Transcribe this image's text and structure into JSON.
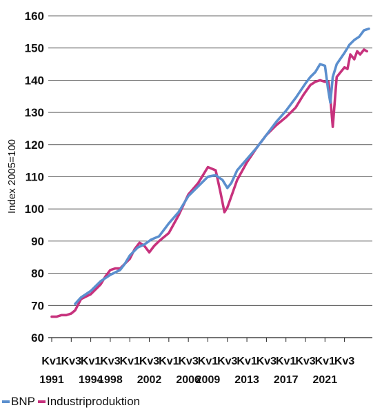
{
  "chart_data": {
    "type": "line",
    "xlabel": "",
    "ylabel": "Index 2005=100",
    "ylim": [
      60,
      160
    ],
    "y_ticks": [
      60,
      70,
      80,
      90,
      100,
      110,
      120,
      130,
      140,
      150,
      160
    ],
    "x_start": 1991.0,
    "x_end": 2023.5,
    "x_ticks": [
      {
        "quarter": "Kv1",
        "year": "1991",
        "x": 1991.0
      },
      {
        "quarter": "Kv3",
        "year": "",
        "x": 1993.0
      },
      {
        "quarter": "Kv1",
        "year": "1994",
        "x": 1995.0
      },
      {
        "quarter": "Kv3",
        "year": "1998",
        "x": 1997.0
      },
      {
        "quarter": "Kv1",
        "year": "",
        "x": 1999.0
      },
      {
        "quarter": "Kv3",
        "year": "2002",
        "x": 2001.0
      },
      {
        "quarter": "Kv1",
        "year": "",
        "x": 2003.0
      },
      {
        "quarter": "Kv3",
        "year": "2006",
        "x": 2005.0
      },
      {
        "quarter": "Kv1",
        "year": "2009",
        "x": 2007.0
      },
      {
        "quarter": "Kv3",
        "year": "",
        "x": 2009.0
      },
      {
        "quarter": "Kv1",
        "year": "2013",
        "x": 2011.0
      },
      {
        "quarter": "Kv3",
        "year": "",
        "x": 2013.0
      },
      {
        "quarter": "Kv1",
        "year": "2017",
        "x": 2015.0
      },
      {
        "quarter": "Kv3",
        "year": "",
        "x": 2017.0
      },
      {
        "quarter": "Kv1",
        "year": "2021",
        "x": 2019.0
      },
      {
        "quarter": "Kv3",
        "year": "",
        "x": 2021.0
      }
    ],
    "grid": "horizontal",
    "legend_position": "bottom-left",
    "series": [
      {
        "name": "BNP",
        "color": "#5b8fce",
        "x": [
          1993.4,
          1994.0,
          1995.0,
          1996.0,
          1997.0,
          1998.0,
          1998.5,
          1999.0,
          1999.8,
          2000.5,
          2001.2,
          2002.0,
          2003.0,
          2004.0,
          2005.0,
          2006.0,
          2007.0,
          2007.8,
          2008.5,
          2009.0,
          2009.4,
          2010.0,
          2011.0,
          2012.0,
          2013.0,
          2014.0,
          2015.0,
          2016.0,
          2017.0,
          2017.5,
          2018.0,
          2018.5,
          2019.0,
          2019.3,
          2019.55,
          2019.8,
          2020.2,
          2021.0,
          2021.5,
          2022.0,
          2022.5,
          2023.0,
          2023.5
        ],
        "values": [
          70.5,
          72.5,
          74.5,
          77.5,
          79.5,
          81.0,
          83.0,
          85.5,
          88.0,
          89.0,
          90.5,
          91.5,
          95.5,
          99.0,
          104.0,
          107.0,
          110.0,
          110.5,
          109.0,
          106.5,
          108.0,
          112.0,
          115.5,
          119.0,
          123.0,
          127.0,
          130.5,
          134.5,
          139.0,
          141.0,
          142.5,
          145.0,
          144.5,
          137.5,
          133.0,
          141.0,
          145.0,
          148.5,
          151.0,
          152.5,
          153.5,
          155.5,
          156.0
        ]
      },
      {
        "name": "Industriproduktion",
        "color": "#c7327d",
        "x": [
          1991.0,
          1991.5,
          1992.0,
          1992.5,
          1993.0,
          1993.4,
          1994.0,
          1995.0,
          1996.0,
          1996.5,
          1997.0,
          1997.5,
          1998.0,
          1998.5,
          1999.0,
          1999.5,
          2000.0,
          2000.5,
          2001.0,
          2001.5,
          2002.0,
          2003.0,
          2004.0,
          2005.0,
          2006.0,
          2007.0,
          2007.8,
          2008.3,
          2008.7,
          2009.0,
          2009.3,
          2010.0,
          2011.0,
          2012.0,
          2013.0,
          2014.0,
          2015.0,
          2016.0,
          2016.8,
          2017.5,
          2018.0,
          2018.5,
          2019.0,
          2019.35,
          2019.55,
          2019.8,
          2020.2,
          2021.0,
          2021.3,
          2021.6,
          2022.0,
          2022.3,
          2022.6,
          2023.0,
          2023.3
        ],
        "values": [
          66.5,
          66.5,
          67.0,
          67.0,
          67.5,
          68.5,
          72.0,
          73.5,
          76.5,
          79.0,
          81.0,
          81.5,
          81.5,
          83.0,
          84.5,
          87.5,
          89.5,
          88.5,
          86.5,
          88.5,
          90.0,
          92.5,
          98.0,
          104.5,
          108.0,
          113.0,
          112.0,
          105.0,
          99.0,
          100.5,
          103.0,
          109.0,
          114.5,
          119.0,
          123.0,
          126.0,
          128.5,
          131.5,
          135.5,
          138.5,
          139.5,
          140.0,
          139.5,
          139.5,
          134.5,
          125.5,
          141.0,
          144.0,
          143.5,
          148.0,
          146.5,
          149.0,
          148.0,
          149.5,
          149.0
        ]
      }
    ]
  }
}
